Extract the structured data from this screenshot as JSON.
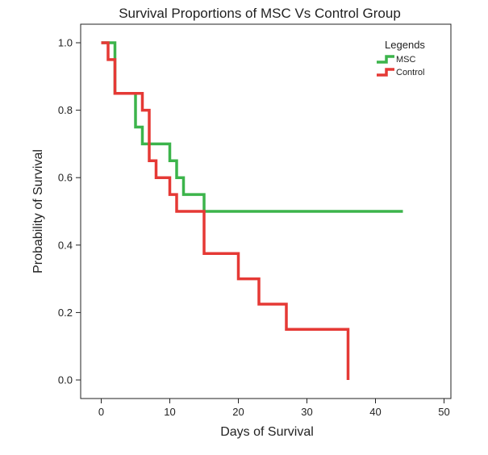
{
  "chart_data": {
    "type": "line",
    "subtype": "step",
    "title": "Survival Proportions of MSC Vs Control Group",
    "xlabel": "Days of Survival",
    "ylabel": "Probability of Survival",
    "xlim": [
      -3,
      51
    ],
    "ylim": [
      -0.055,
      1.055
    ],
    "xticks": [
      0,
      10,
      20,
      30,
      40,
      50
    ],
    "xtick_labels": [
      "0",
      "10",
      "20",
      "30",
      "40",
      "50"
    ],
    "yticks": [
      0.0,
      0.2,
      0.4,
      0.6,
      0.8,
      1.0
    ],
    "ytick_labels": [
      "0.0",
      "0.2",
      "0.4",
      "0.6",
      "0.8",
      "1.0"
    ],
    "grid": false,
    "legend": {
      "title": "Legends",
      "position": "top-right"
    },
    "series": [
      {
        "name": "MSC",
        "color": "#3cb44b",
        "x": [
          0,
          2,
          5,
          6,
          10,
          11,
          12,
          15,
          44
        ],
        "y": [
          1.0,
          0.85,
          0.75,
          0.7,
          0.65,
          0.6,
          0.55,
          0.5,
          0.5
        ]
      },
      {
        "name": "Control",
        "color": "#e53935",
        "x": [
          0,
          1,
          2,
          6,
          7,
          8,
          10,
          11,
          15,
          20,
          23,
          27,
          36,
          36
        ],
        "y": [
          1.0,
          0.95,
          0.85,
          0.8,
          0.65,
          0.6,
          0.55,
          0.5,
          0.375,
          0.3,
          0.225,
          0.15,
          0.15,
          0.0
        ]
      }
    ]
  }
}
